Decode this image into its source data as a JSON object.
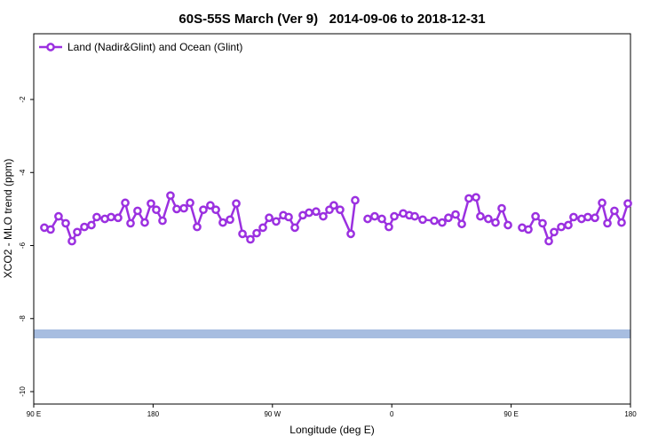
{
  "chart_data": {
    "type": "line",
    "title": "60S-55S March (Ver 9)   2014-09-06 to 2018-12-31",
    "x_label": "Longitude (deg E)",
    "y_label": "XCO2 - MLO trend (ppm)",
    "legend": "upper left",
    "xlim": [
      90,
      540
    ],
    "ylim": [
      -10.34,
      -0.2
    ],
    "xticks": [
      {
        "value": 90,
        "label": "90 E"
      },
      180,
      {
        "value": 270,
        "label": "90 W"
      },
      {
        "value": 360,
        "label": "0"
      },
      {
        "value": 450,
        "label": "90 E"
      },
      {
        "value": 540,
        "label": "180"
      }
    ],
    "yticks": [
      -10,
      -8,
      -6,
      -4,
      -2
    ],
    "x": [
      98.0,
      102.7,
      108.7,
      114.1,
      118.8,
      122.8,
      128.2,
      133.5,
      137.5,
      143.6,
      148.3,
      153.6,
      159.0,
      163.0,
      168.3,
      173.7,
      178.4,
      182.4,
      187.1,
      193.1,
      197.8,
      203.2,
      207.9,
      213.2,
      217.9,
      223.2,
      227.3,
      232.6,
      238.0,
      242.7,
      247.4,
      253.4,
      258.1,
      262.8,
      267.5,
      272.8,
      278.2,
      282.2,
      286.9,
      292.9,
      297.6,
      302.9,
      308.3,
      313.0,
      316.3,
      321.0,
      329.1,
      332.4,
      337.0,
      341.8,
      347.1,
      352.5,
      357.8,
      361.9,
      368.6,
      373.2,
      377.3,
      383.3,
      392.0,
      398.0,
      402.7,
      408.1,
      412.8,
      418.1,
      423.5,
      426.8,
      432.8,
      438.2,
      442.9,
      447.6,
      453.0,
      458.3,
      463.0,
      468.4,
      473.7,
      478.4,
      482.4,
      487.8,
      493.1,
      497.1,
      503.1,
      507.8,
      513.2,
      518.6,
      522.6,
      527.9,
      533.3,
      538.0
    ],
    "series": [
      {
        "name": "Land (Nadir&Glint) and Ocean (Glint)",
        "color": "#9b30e0",
        "values": [
          -5.51,
          -5.56,
          -5.2,
          -5.39,
          -5.88,
          -5.63,
          -5.49,
          -5.44,
          -5.22,
          -5.27,
          -5.22,
          -5.24,
          -4.83,
          -5.39,
          -5.05,
          -5.37,
          -4.85,
          -5.02,
          -5.32,
          -4.63,
          -5.0,
          -4.98,
          -4.83,
          -5.49,
          -5.02,
          -4.9,
          -5.02,
          -5.37,
          -5.29,
          -4.85,
          -5.68,
          -5.83,
          -5.66,
          -5.51,
          -5.24,
          -5.34,
          -5.17,
          -5.22,
          -5.51,
          -5.17,
          -5.1,
          -5.07,
          -5.2,
          -5.02,
          -4.9,
          -5.02,
          -5.68,
          -4.76,
          null,
          -5.27,
          -5.2,
          -5.27,
          -5.49,
          -5.2,
          -5.12,
          -5.17,
          -5.2,
          -5.29,
          -5.32,
          -5.37,
          -5.24,
          -5.15,
          -5.41,
          -4.71,
          -4.68,
          -5.2,
          -5.27,
          -5.37,
          -4.98,
          -5.44,
          null,
          -5.51,
          -5.56,
          -5.2,
          -5.39,
          -5.88,
          -5.63,
          -5.49,
          -5.44,
          -5.22,
          -5.27,
          -5.22,
          -5.24,
          -4.83,
          -5.39,
          -5.05,
          -5.37,
          -4.85
        ]
      }
    ]
  }
}
